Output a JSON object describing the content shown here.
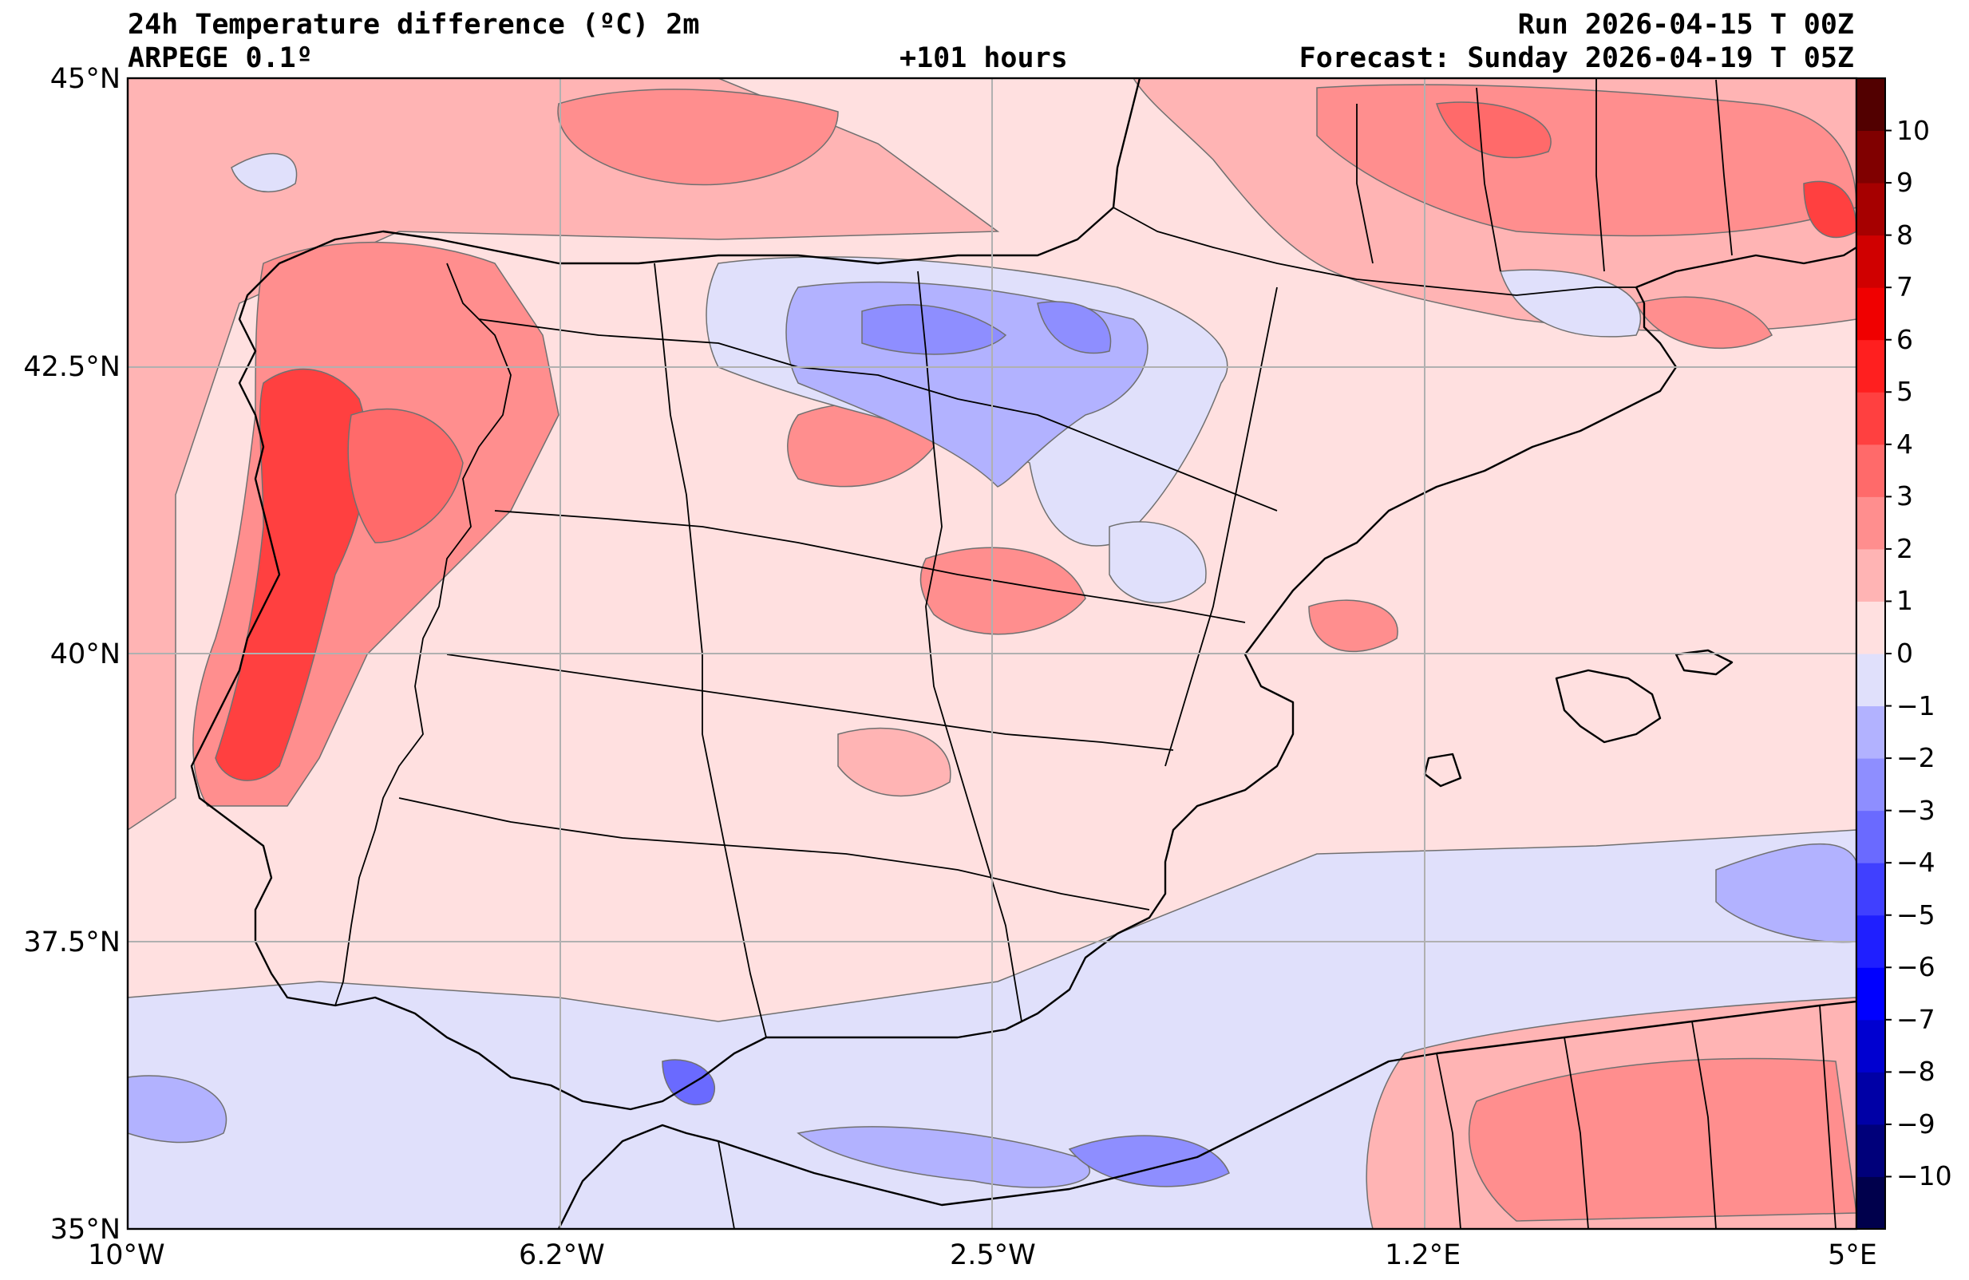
{
  "header": {
    "title": "24h Temperature difference (ºC) 2m",
    "model": "ARPEGE 0.1º",
    "lead_time": "+101 hours",
    "run": "Run 2026-04-15 T 00Z",
    "forecast": "Forecast: Sunday 2026-04-19 T 05Z"
  },
  "map": {
    "extent_lon": [
      -10,
      5
    ],
    "extent_lat": [
      35,
      45
    ],
    "lat_ticks": [
      {
        "value": 45,
        "label": "45°N"
      },
      {
        "value": 42.5,
        "label": "42.5°N"
      },
      {
        "value": 40,
        "label": "40°N"
      },
      {
        "value": 37.5,
        "label": "37.5°N"
      },
      {
        "value": 35,
        "label": "35°N"
      }
    ],
    "lon_ticks": [
      {
        "value": -10,
        "label": "10°W"
      },
      {
        "value": -6.25,
        "label": "6.2°W"
      },
      {
        "value": -2.5,
        "label": "2.5°W"
      },
      {
        "value": 1.25,
        "label": "1.2°E"
      },
      {
        "value": 5,
        "label": "5°E"
      }
    ]
  },
  "colorbar": {
    "levels": [
      -11,
      -10,
      -9,
      -8,
      -7,
      -6,
      -5,
      -4,
      -3,
      -2,
      -1,
      0,
      1,
      2,
      3,
      4,
      5,
      6,
      7,
      8,
      9,
      10,
      11
    ],
    "colors": [
      "#00004c",
      "#00007a",
      "#0000a6",
      "#0000d0",
      "#0000ff",
      "#1f1fff",
      "#4040ff",
      "#6a6aff",
      "#8e8eff",
      "#b2b2ff",
      "#e0e0fb",
      "#ffe0e0",
      "#ffb4b4",
      "#ff8e8e",
      "#ff6a6a",
      "#ff4040",
      "#ff1f1f",
      "#f00000",
      "#d00000",
      "#a60000",
      "#800000",
      "#520000"
    ],
    "tick_labels": [
      "−10",
      "−9",
      "−8",
      "−7",
      "−6",
      "−5",
      "−4",
      "−3",
      "−2",
      "−1",
      "0",
      "1",
      "2",
      "3",
      "4",
      "5",
      "6",
      "7",
      "8",
      "9",
      "10"
    ],
    "tick_values": [
      -10,
      -9,
      -8,
      -7,
      -6,
      -5,
      -4,
      -3,
      -2,
      -1,
      0,
      1,
      2,
      3,
      4,
      5,
      6,
      7,
      8,
      9,
      10
    ]
  },
  "palette": {
    "pink_light": "#ffe0e0",
    "pink": "#ffb4b4",
    "red_light": "#ff8e8e",
    "red": "#ff6a6a",
    "red_strong": "#ff4040",
    "blue_light": "#e0e0fb",
    "blue": "#b2b2ff",
    "blue_mid": "#8e8eff",
    "blue_strong": "#6a6aff",
    "border": "#000000",
    "grid": "#b0b0b0"
  }
}
